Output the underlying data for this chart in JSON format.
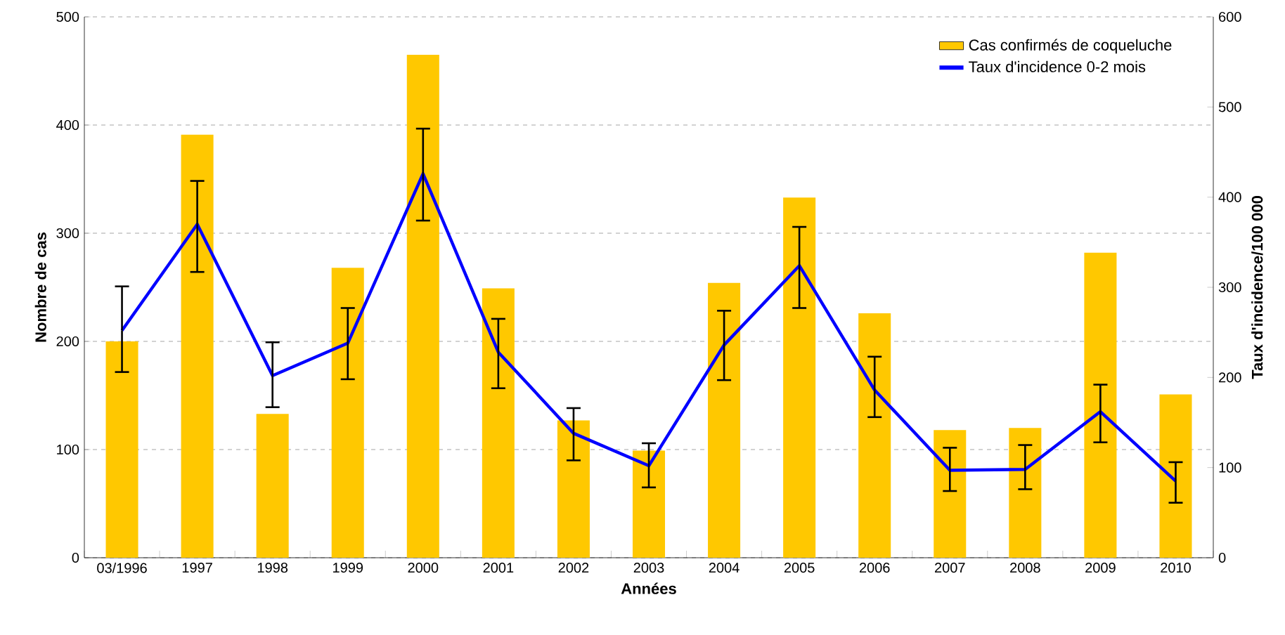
{
  "chart_data": {
    "type": "bar",
    "xlabel": "Années",
    "ylabel": "Nombre de cas",
    "y2label": "Taux d'incidence/100 000",
    "categories": [
      "03/1996",
      "1997",
      "1998",
      "1999",
      "2000",
      "2001",
      "2002",
      "2003",
      "2004",
      "2005",
      "2006",
      "2007",
      "2008",
      "2009",
      "2010"
    ],
    "series": [
      {
        "name": "Cas confirmés de coqueluche",
        "color": "#ffc800",
        "values": [
          200,
          391,
          133,
          268,
          465,
          249,
          127,
          99,
          254,
          333,
          226,
          118,
          120,
          282,
          151
        ]
      },
      {
        "name": "Taux d'incidence 0-2 mois",
        "type": "line",
        "axis": "y2",
        "color": "#0000ff",
        "values": [
          252,
          370,
          202,
          238,
          426,
          228,
          138,
          102,
          236,
          324,
          186,
          97,
          98,
          162,
          85
        ],
        "errors": [
          [
            206,
            301
          ],
          [
            317,
            418
          ],
          [
            167,
            239
          ],
          [
            198,
            277
          ],
          [
            374,
            476
          ],
          [
            188,
            265
          ],
          [
            108,
            166
          ],
          [
            78,
            127
          ],
          [
            197,
            274
          ],
          [
            277,
            367
          ],
          [
            156,
            223
          ],
          [
            74,
            122
          ],
          [
            76,
            125
          ],
          [
            128,
            192
          ],
          [
            61,
            106
          ]
        ]
      }
    ],
    "ylim": [
      0,
      500
    ],
    "yticks": [
      0,
      100,
      200,
      300,
      400,
      500
    ],
    "y2lim": [
      0,
      600
    ],
    "y2ticks": [
      0,
      100,
      200,
      300,
      400,
      500,
      600
    ],
    "grid": "y",
    "legend": "top right"
  }
}
